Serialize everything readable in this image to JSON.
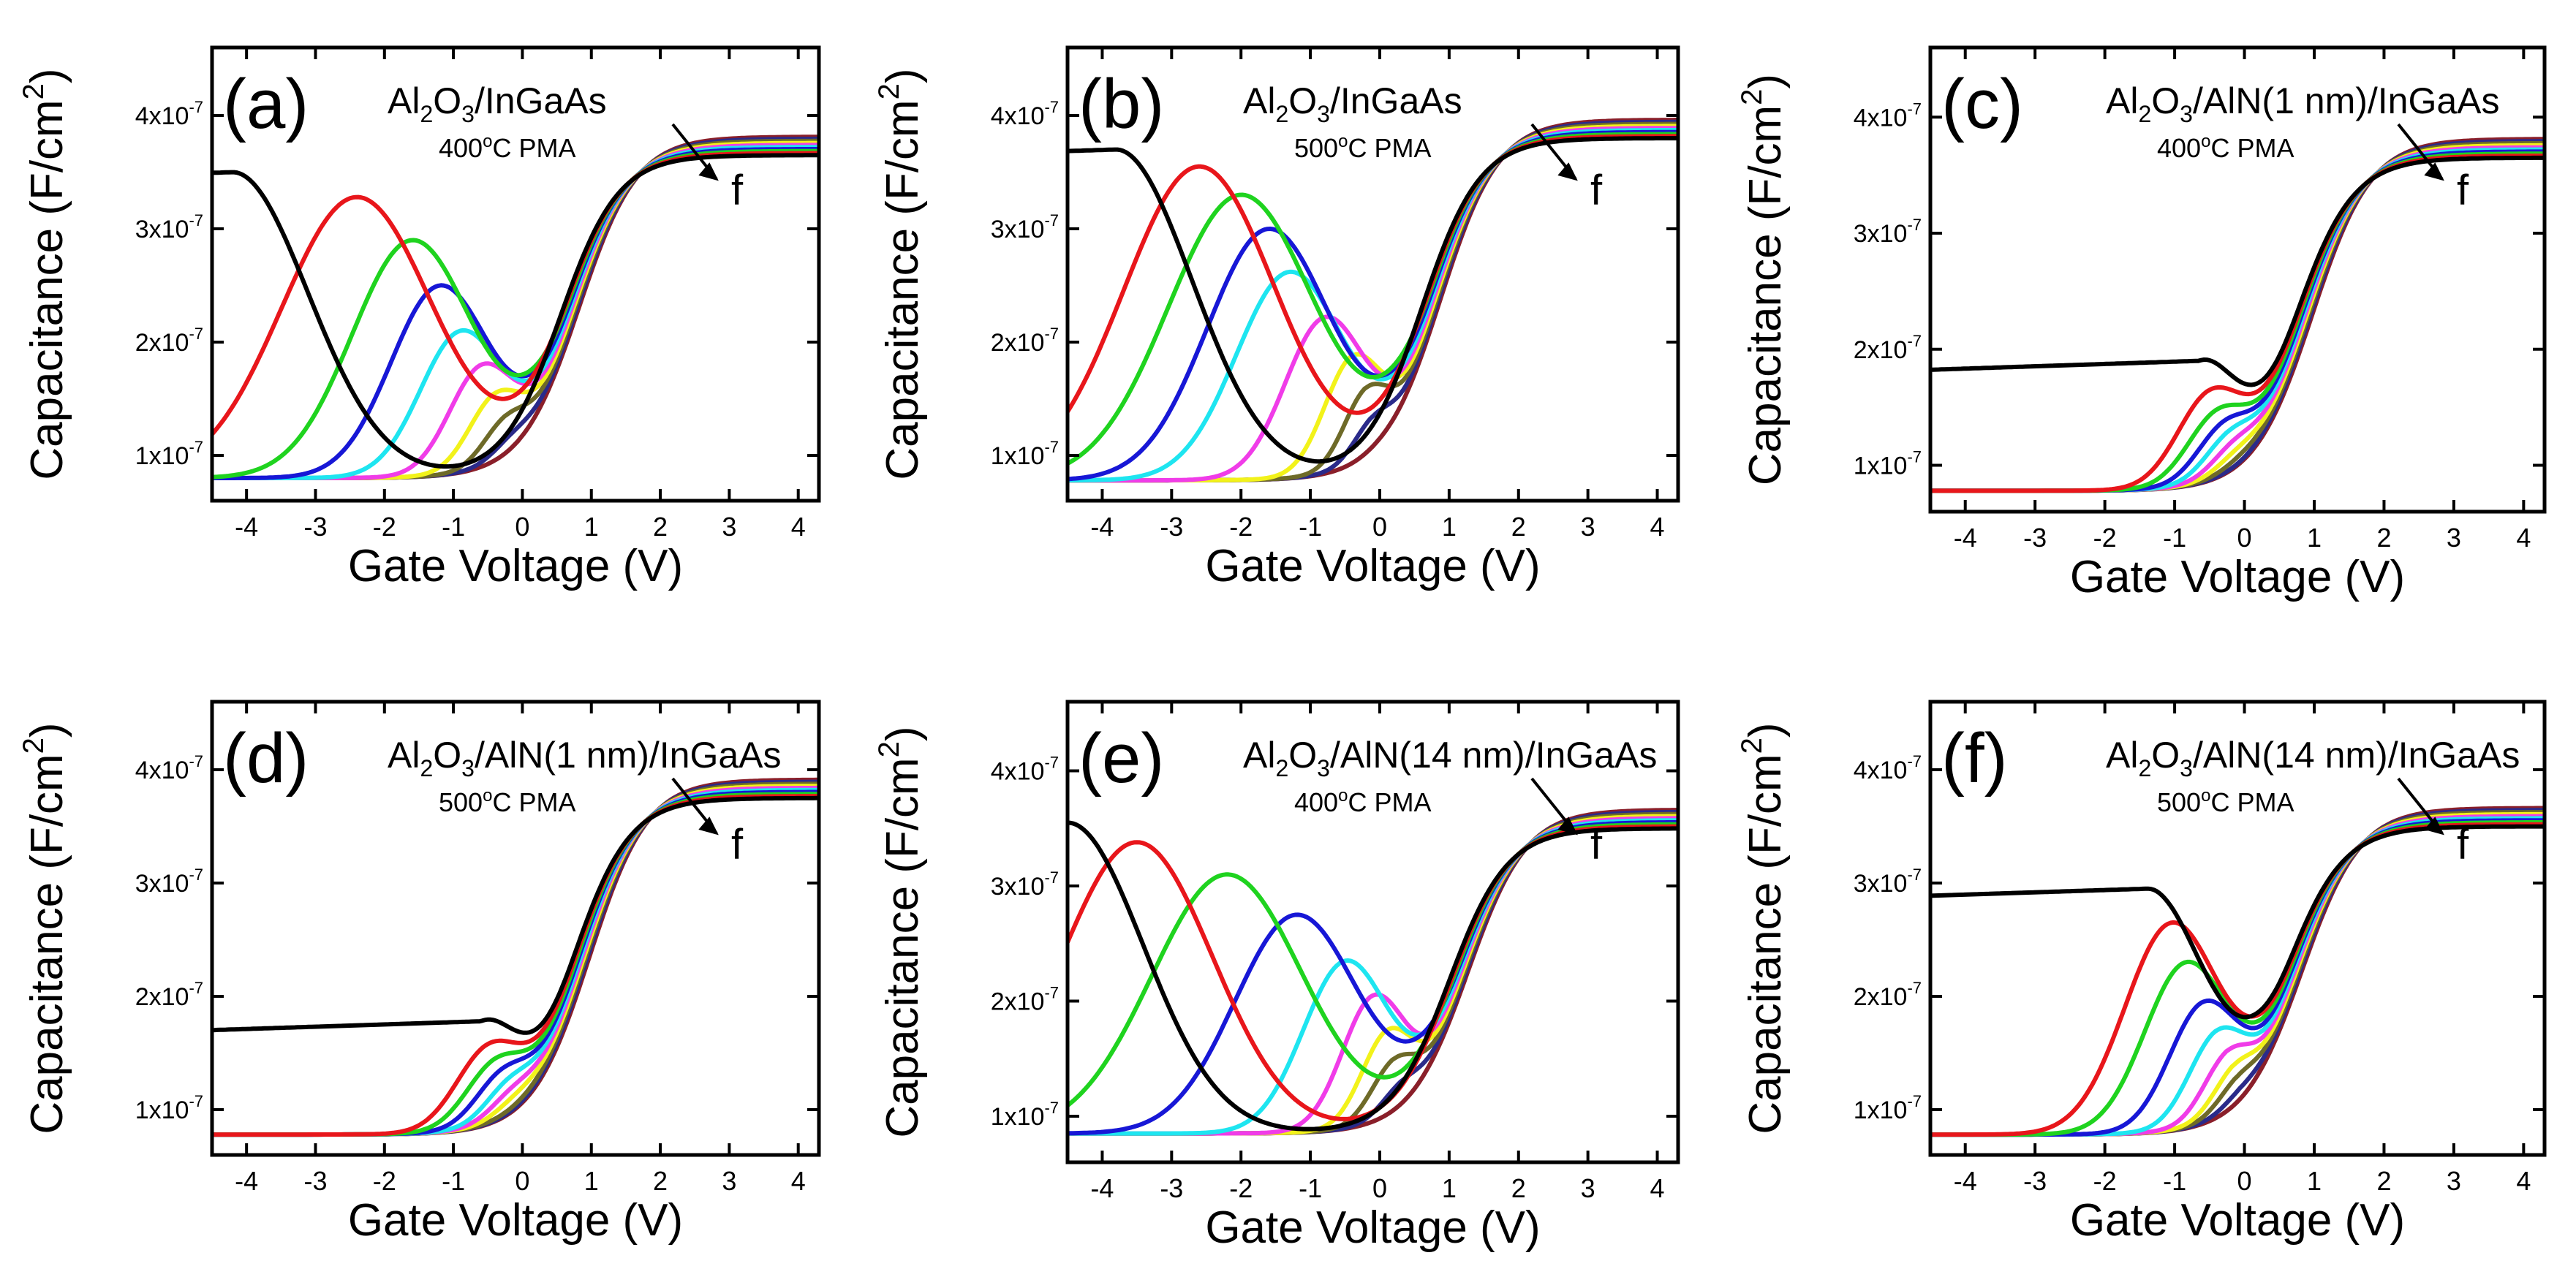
{
  "figure": {
    "xlabel": "Gate Voltage (V)",
    "ylabel_main": "Capacitance (F/cm",
    "ylabel_sup": "2",
    "ylabel_close": ")",
    "xticks": [
      -4,
      -3,
      -2,
      -1,
      0,
      1,
      2,
      3,
      4
    ],
    "ytick_mantissa": [
      "1x10",
      "2x10",
      "3x10",
      "4x10"
    ],
    "ytick_exp": "-7",
    "freq_label": "f",
    "series_colors": [
      "#000000",
      "#e8161b",
      "#1fd31f",
      "#1717d6",
      "#1ee5f0",
      "#f03ce8",
      "#f2f21a",
      "#6e6a28",
      "#2a2a8a",
      "#8a1f2a"
    ]
  },
  "chart_data": [
    {
      "type": "line",
      "panel": "a",
      "label": "(a)",
      "title_parts": [
        "Al",
        "2",
        "O",
        "3",
        "/InGaAs"
      ],
      "subtitle": "400",
      "subtitle_deg": "o",
      "subtitle_tail": "C PMA",
      "xlim": [
        -4.5,
        4.3
      ],
      "ylim": [
        6e-08,
        4.6e-07
      ],
      "accumulation": 3.65e-07,
      "depletion": 8e-08,
      "vfb": 0.55,
      "dip": 2e-07,
      "peaks_x": [
        -4.2,
        -2.4,
        -1.6,
        -1.2,
        -0.9,
        -0.6,
        -0.4,
        -0.25,
        -0.15,
        -0.05
      ],
      "peaks_y": [
        3.5e-07,
        3.28e-07,
        2.9e-07,
        2.5e-07,
        2.1e-07,
        1.8e-07,
        1.55e-07,
        1.35e-07,
        1.2e-07,
        1.05e-07
      ]
    },
    {
      "type": "line",
      "panel": "b",
      "label": "(b)",
      "title_parts": [
        "Al",
        "2",
        "O",
        "3",
        "/InGaAs"
      ],
      "subtitle": "500",
      "subtitle_deg": "o",
      "subtitle_tail": "C PMA",
      "xlim": [
        -4.5,
        4.3
      ],
      "ylim": [
        6e-08,
        4.6e-07
      ],
      "accumulation": 3.8e-07,
      "depletion": 7.8e-08,
      "vfb": 0.6,
      "dip": 2.1e-07,
      "peaks_x": [
        -3.8,
        -2.6,
        -2.0,
        -1.6,
        -1.3,
        -0.8,
        -0.4,
        -0.2,
        -0.1,
        0.0
      ],
      "peaks_y": [
        3.7e-07,
        3.55e-07,
        3.3e-07,
        3e-07,
        2.62e-07,
        2.22e-07,
        1.88e-07,
        1.6e-07,
        1.35e-07,
        1.15e-07
      ]
    },
    {
      "type": "line",
      "panel": "c",
      "label": "(c)",
      "title_parts": [
        "Al",
        "2",
        "O",
        "3",
        "/AlN(1 nm)/InGaAs"
      ],
      "subtitle": "400",
      "subtitle_deg": "o",
      "subtitle_tail": "C PMA",
      "xlim": [
        -4.5,
        4.3
      ],
      "ylim": [
        6e-08,
        4.6e-07
      ],
      "accumulation": 3.65e-07,
      "depletion": 7.8e-08,
      "vfb": 0.7,
      "dip": 1.45e-07,
      "peaks_x": [
        -0.65,
        -0.5,
        -0.4,
        -0.3,
        -0.22,
        -0.15,
        -0.1,
        -0.05,
        0.0,
        0.05
      ],
      "peaks_y": [
        1.9e-07,
        1.65e-07,
        1.48e-07,
        1.38e-07,
        1.3e-07,
        1.22e-07,
        1.15e-07,
        1.1e-07,
        1.05e-07,
        1e-07
      ]
    },
    {
      "type": "line",
      "panel": "d",
      "label": "(d)",
      "title_parts": [
        "Al",
        "2",
        "O",
        "3",
        "/AlN(1 nm)/InGaAs"
      ],
      "subtitle": "500",
      "subtitle_deg": "o",
      "subtitle_tail": "C PMA",
      "xlim": [
        -4.5,
        4.3
      ],
      "ylim": [
        6e-08,
        4.6e-07
      ],
      "accumulation": 3.75e-07,
      "depletion": 7.8e-08,
      "vfb": 0.7,
      "dip": 1.4e-07,
      "peaks_x": [
        -0.6,
        -0.5,
        -0.4,
        -0.3,
        -0.2,
        -0.15,
        -0.1,
        -0.05,
        0.0,
        0.05
      ],
      "peaks_y": [
        1.78e-07,
        1.58e-07,
        1.45e-07,
        1.36e-07,
        1.28e-07,
        1.2e-07,
        1.14e-07,
        1.08e-07,
        1.03e-07,
        1e-07
      ]
    },
    {
      "type": "line",
      "panel": "e",
      "label": "(e)",
      "title_parts": [
        "Al",
        "2",
        "O",
        "3",
        "/AlN(14 nm)/InGaAs"
      ],
      "subtitle": "400",
      "subtitle_deg": "o",
      "subtitle_tail": "C PMA",
      "xlim": [
        -4.5,
        4.3
      ],
      "ylim": [
        6e-08,
        4.6e-07
      ],
      "accumulation": 3.5e-07,
      "depletion": 8.5e-08,
      "vfb": 1.0,
      "dip": 2.45e-07,
      "peaks_x": [
        -4.5,
        -3.5,
        -2.2,
        -1.2,
        -0.5,
        -0.1,
        0.1,
        0.2,
        0.3,
        0.4
      ],
      "peaks_y": [
        3.55e-07,
        3.38e-07,
        3.1e-07,
        2.75e-07,
        2.35e-07,
        2.05e-07,
        1.75e-07,
        1.5e-07,
        1.3e-07,
        1.12e-07
      ]
    },
    {
      "type": "line",
      "panel": "f",
      "label": "(f)",
      "title_parts": [
        "Al",
        "2",
        "O",
        "3",
        "/AlN(14 nm)/InGaAs"
      ],
      "subtitle": "500",
      "subtitle_deg": "o",
      "subtitle_tail": "C PMA",
      "xlim": [
        -4.5,
        4.3
      ],
      "ylim": [
        6e-08,
        4.6e-07
      ],
      "accumulation": 3.5e-07,
      "depletion": 7.8e-08,
      "vfb": 0.55,
      "dip": 1.72e-07,
      "peaks_x": [
        -1.4,
        -1.05,
        -0.85,
        -0.6,
        -0.4,
        -0.25,
        -0.15,
        -0.1,
        -0.05,
        0.0
      ],
      "peaks_y": [
        2.95e-07,
        2.65e-07,
        2.3e-07,
        1.95e-07,
        1.7e-07,
        1.52e-07,
        1.4e-07,
        1.3e-07,
        1.2e-07,
        1.1e-07
      ]
    }
  ]
}
